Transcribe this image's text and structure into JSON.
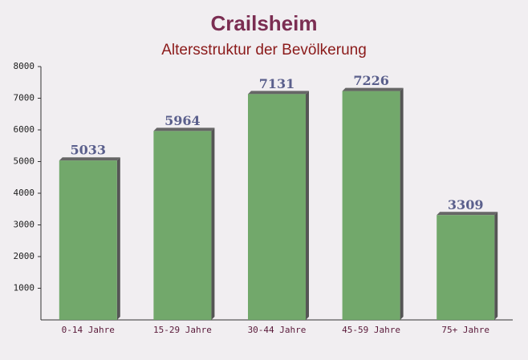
{
  "chart_data": {
    "type": "bar",
    "title": "Crailsheim",
    "subtitle": "Altersstruktur der Bevölkerung",
    "categories": [
      "0-14 Jahre",
      "15-29 Jahre",
      "30-44 Jahre",
      "45-59 Jahre",
      "75+ Jahre"
    ],
    "values": [
      5033,
      5964,
      7131,
      7226,
      3309
    ],
    "color": "#6aa363",
    "ylim": [
      0,
      8000
    ],
    "yticks": [
      1000,
      2000,
      3000,
      4000,
      5000,
      6000,
      7000,
      8000
    ],
    "grid": false
  }
}
